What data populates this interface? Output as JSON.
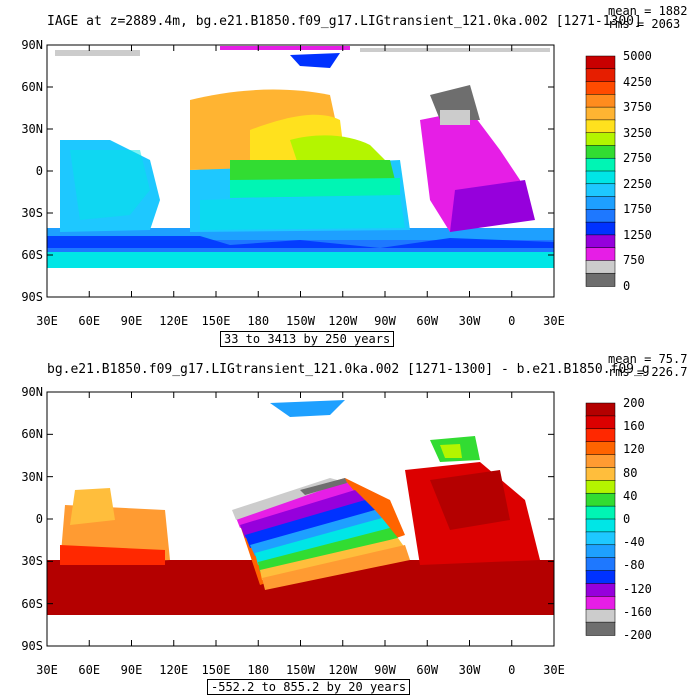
{
  "panels": [
    {
      "title": "IAGE at z=2889.4m, bg.e21.B1850.f09_g17.LIGtransient_121.0ka.002 [1271-1300]",
      "stats": {
        "mean": "mean = 1882",
        "rms": "rms = 2063"
      },
      "range_label": "33 to 3413 by 250 years",
      "lat_labels": [
        "90N",
        "60N",
        "30N",
        "0",
        "30S",
        "60S",
        "90S"
      ],
      "lon_labels": [
        "30E",
        "60E",
        "90E",
        "120E",
        "150E",
        "180",
        "150W",
        "120W",
        "90W",
        "60W",
        "30W",
        "0",
        "30E"
      ],
      "colorbar": {
        "labels": [
          "5000",
          "4250",
          "3750",
          "3250",
          "2750",
          "2250",
          "1750",
          "1250",
          "750",
          "0"
        ],
        "colors": [
          "#c80000",
          "#e61e00",
          "#ff4b00",
          "#ff8c1e",
          "#ffb432",
          "#ffe11e",
          "#b4f500",
          "#32dc32",
          "#00f5b4",
          "#00e6e6",
          "#1ec8ff",
          "#1ea0ff",
          "#1e78ff",
          "#0032ff",
          "#9600dc",
          "#e61ee6",
          "#cccccc",
          "#6e6e6e"
        ]
      }
    },
    {
      "title": "bg.e21.B1850.f09_g17.LIGtransient_121.0ka.002 [1271-1300] - b.e21.B1850.f09_g",
      "stats": {
        "mean": "mean = 75.7",
        "rms": "rms = 226.7"
      },
      "range_label": "-552.2 to 855.2 by 20 years",
      "lat_labels": [
        "90N",
        "60N",
        "30N",
        "0",
        "30S",
        "60S",
        "90S"
      ],
      "lon_labels": [
        "30E",
        "60E",
        "90E",
        "120E",
        "150E",
        "180",
        "150W",
        "120W",
        "90W",
        "60W",
        "30W",
        "0",
        "30E"
      ],
      "colorbar": {
        "labels": [
          "200",
          "160",
          "120",
          "80",
          "40",
          "0",
          "-40",
          "-80",
          "-120",
          "-160",
          "-200"
        ],
        "colors": [
          "#b40000",
          "#dc0000",
          "#ff2800",
          "#ff6400",
          "#ff9b32",
          "#ffbe3c",
          "#b4f500",
          "#32dc32",
          "#00f5b4",
          "#00e6e6",
          "#1ec8ff",
          "#1ea0ff",
          "#1e78ff",
          "#0032ff",
          "#9600dc",
          "#e61ee6",
          "#cccccc",
          "#6e6e6e"
        ]
      }
    }
  ]
}
